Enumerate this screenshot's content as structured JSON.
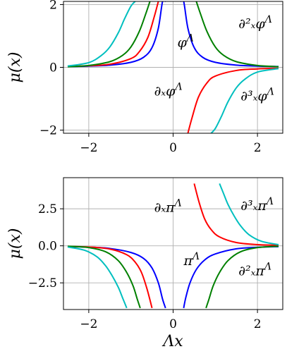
{
  "chart_data": [
    {
      "type": "line",
      "ylabel": "μ(x)",
      "xlabel": "",
      "xlim": [
        -2.6,
        2.6
      ],
      "ylim": [
        -2.1,
        2.1
      ],
      "xticks": [
        -2,
        0,
        2
      ],
      "yticks": [
        -2,
        0,
        2
      ],
      "xtick_labels": [
        "−2",
        "0",
        "2"
      ],
      "ytick_labels": [
        "−2",
        "0",
        "2"
      ],
      "grid": true,
      "series": [
        {
          "color": "#0000ff",
          "x": [
            -2.5,
            -2.0,
            -1.5,
            -1.0,
            -0.7,
            -0.5,
            -0.35,
            -0.25,
            -0.18,
            0.18,
            0.25,
            0.35,
            0.5,
            0.7,
            1.0,
            1.5,
            2.0,
            2.5
          ],
          "y": [
            0.025,
            0.04,
            0.07,
            0.16,
            0.32,
            0.63,
            1.25,
            2.1,
            2.1,
            2.1,
            2.1,
            1.25,
            0.63,
            0.32,
            0.16,
            0.07,
            0.04,
            0.025
          ]
        },
        {
          "color": "#ff0000",
          "x": [
            -2.5,
            -2.0,
            -1.5,
            -1.0,
            -0.8,
            -0.6,
            -0.45,
            -0.35,
            0.35,
            0.45,
            0.6,
            0.8,
            1.0,
            1.5,
            2.0,
            2.5
          ],
          "y": [
            0.03,
            0.05,
            0.1,
            0.28,
            0.5,
            0.95,
            1.6,
            2.1,
            -2.1,
            -1.6,
            -0.95,
            -0.5,
            -0.28,
            -0.1,
            -0.05,
            -0.03
          ]
        },
        {
          "color": "#008000",
          "x": [
            -2.5,
            -2.0,
            -1.5,
            -1.2,
            -1.0,
            -0.8,
            -0.65,
            -0.55,
            0.55,
            0.65,
            0.8,
            1.0,
            1.2,
            1.5,
            2.0,
            2.5
          ],
          "y": [
            0.02,
            0.06,
            0.18,
            0.38,
            0.65,
            1.15,
            1.7,
            2.1,
            2.1,
            1.7,
            1.15,
            0.65,
            0.38,
            0.18,
            0.06,
            0.02
          ]
        },
        {
          "color": "#00bfbf",
          "x": [
            -2.5,
            -2.0,
            -1.7,
            -1.5,
            -1.3,
            -1.15,
            -1.0,
            -0.9,
            0.9,
            1.0,
            1.15,
            1.3,
            1.5,
            1.7,
            2.0,
            2.5
          ],
          "y": [
            0.04,
            0.15,
            0.38,
            0.65,
            1.1,
            1.55,
            1.95,
            2.1,
            -2.1,
            -1.95,
            -1.55,
            -1.1,
            -0.65,
            -0.38,
            -0.15,
            -0.04
          ]
        }
      ],
      "annotations": [
        {
          "text": "∂²ₓφ^Λ",
          "x": 1.55,
          "y": 1.25
        },
        {
          "text": "φ^Λ",
          "x": 0.1,
          "y": 0.65
        },
        {
          "text": "∂ₓφ^Λ",
          "x": -0.45,
          "y": -0.9
        },
        {
          "text": "∂³ₓφ^Λ",
          "x": 1.6,
          "y": -1.05
        }
      ]
    },
    {
      "type": "line",
      "ylabel": "μ(x)",
      "xlabel": "Λx",
      "xlim": [
        -2.6,
        2.6
      ],
      "ylim": [
        -4.3,
        4.6
      ],
      "xticks": [
        -2,
        0,
        2
      ],
      "yticks": [
        2.5,
        0.0,
        -2.5
      ],
      "xtick_labels": [
        "−2",
        "0",
        "2"
      ],
      "ytick_labels": [
        "2.5",
        "0.0",
        "−2.5"
      ],
      "grid": true,
      "series": [
        {
          "color": "#0000ff",
          "x": [
            -2.5,
            -2.0,
            -1.5,
            -1.0,
            -0.7,
            -0.5,
            -0.35,
            -0.25,
            -0.18,
            0.25,
            0.3,
            0.4,
            0.55,
            0.75,
            1.0,
            1.5,
            2.0,
            2.5
          ],
          "y": [
            -0.05,
            -0.09,
            -0.18,
            -0.45,
            -0.85,
            -1.5,
            -2.5,
            -3.6,
            -4.2,
            -4.2,
            -3.5,
            -2.5,
            -1.6,
            -0.95,
            -0.55,
            -0.2,
            -0.1,
            -0.05
          ]
        },
        {
          "color": "#ff0000",
          "x": [
            -2.5,
            -2.0,
            -1.5,
            -1.1,
            -0.9,
            -0.75,
            -0.62,
            -0.5,
            0.5,
            0.62,
            0.75,
            0.9,
            1.1,
            1.5,
            2.0,
            2.5
          ],
          "y": [
            -0.04,
            -0.08,
            -0.22,
            -0.6,
            -1.1,
            -1.8,
            -2.9,
            -4.2,
            4.2,
            2.9,
            1.8,
            1.1,
            0.6,
            0.22,
            0.08,
            0.04
          ]
        },
        {
          "color": "#008000",
          "x": [
            -2.5,
            -2.0,
            -1.6,
            -1.3,
            -1.1,
            -0.95,
            -0.85,
            -0.78,
            0.78,
            0.85,
            0.95,
            1.1,
            1.3,
            1.6,
            2.0,
            2.5
          ],
          "y": [
            -0.03,
            -0.12,
            -0.4,
            -1.0,
            -1.8,
            -2.7,
            -3.6,
            -4.2,
            -4.2,
            -3.6,
            -2.7,
            -1.8,
            -1.0,
            -0.4,
            -0.12,
            -0.03
          ]
        },
        {
          "color": "#00bfbf",
          "x": [
            -2.5,
            -2.1,
            -1.8,
            -1.6,
            -1.45,
            -1.3,
            -1.2,
            -1.1,
            1.1,
            1.2,
            1.3,
            1.45,
            1.6,
            1.8,
            2.1,
            2.5
          ],
          "y": [
            -0.08,
            -0.3,
            -0.75,
            -1.35,
            -2.0,
            -2.8,
            -3.5,
            -4.2,
            4.2,
            3.5,
            2.8,
            2.0,
            1.35,
            0.75,
            0.3,
            0.08
          ]
        }
      ],
      "annotations": [
        {
          "text": "∂ₓπ^Λ",
          "x": -0.45,
          "y": 2.3
        },
        {
          "text": "∂³ₓπ^Λ",
          "x": 1.6,
          "y": 2.4
        },
        {
          "text": "π^Λ",
          "x": 0.25,
          "y": -1.3
        },
        {
          "text": "∂²ₓπ^Λ",
          "x": 1.55,
          "y": -2.0
        }
      ]
    }
  ]
}
